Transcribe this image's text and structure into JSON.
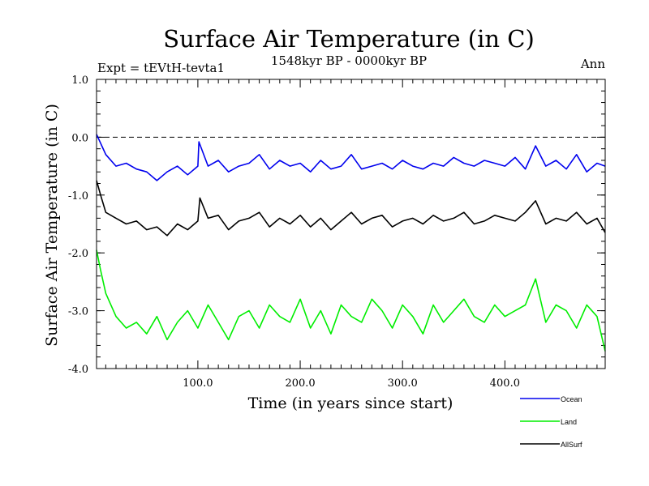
{
  "chart_data": {
    "type": "line",
    "title": "Surface Air Temperature (in C)",
    "subtitle": "1548kyr BP - 0000kyr BP",
    "expt_label": "Expt = tEVtH-tevta1",
    "period_label": "Ann",
    "xlabel": "Time (in years since start)",
    "ylabel": "Surface Air Temperature (in C)",
    "xlim": [
      1,
      498
    ],
    "ylim": [
      -4.0,
      1.0
    ],
    "x_ticks": [
      100,
      200,
      300,
      400
    ],
    "x_tick_labels": [
      "100.0",
      "200.0",
      "300.0",
      "400.0"
    ],
    "y_ticks": [
      1.0,
      0.0,
      -1.0,
      -2.0,
      -3.0,
      -4.0
    ],
    "y_tick_labels": [
      "1.0",
      "0.0",
      "-1.0",
      "-2.0",
      "-3.0",
      "-4.0"
    ],
    "reference_line": 0.0,
    "legend_position": "bottom-right",
    "series": [
      {
        "name": "Ocean",
        "color": "#0000ee",
        "x": [
          1,
          10,
          20,
          30,
          40,
          50,
          60,
          70,
          80,
          90,
          100,
          101,
          110,
          120,
          130,
          140,
          150,
          160,
          170,
          180,
          190,
          200,
          210,
          220,
          230,
          240,
          250,
          260,
          270,
          280,
          290,
          300,
          310,
          320,
          330,
          340,
          350,
          360,
          370,
          380,
          390,
          400,
          410,
          420,
          430,
          440,
          450,
          460,
          470,
          480,
          490,
          498
        ],
        "values": [
          0.05,
          -0.3,
          -0.5,
          -0.45,
          -0.55,
          -0.6,
          -0.75,
          -0.6,
          -0.5,
          -0.65,
          -0.5,
          -0.08,
          -0.5,
          -0.4,
          -0.6,
          -0.5,
          -0.45,
          -0.3,
          -0.55,
          -0.4,
          -0.5,
          -0.45,
          -0.6,
          -0.4,
          -0.55,
          -0.5,
          -0.3,
          -0.55,
          -0.5,
          -0.45,
          -0.55,
          -0.4,
          -0.5,
          -0.55,
          -0.45,
          -0.5,
          -0.35,
          -0.45,
          -0.5,
          -0.4,
          -0.45,
          -0.5,
          -0.35,
          -0.55,
          -0.15,
          -0.5,
          -0.4,
          -0.55,
          -0.3,
          -0.6,
          -0.45,
          -0.5
        ]
      },
      {
        "name": "Land",
        "color": "#00ee00",
        "x": [
          1,
          5,
          10,
          20,
          30,
          40,
          50,
          60,
          70,
          80,
          90,
          100,
          110,
          120,
          130,
          140,
          150,
          160,
          170,
          180,
          190,
          200,
          210,
          220,
          230,
          240,
          250,
          260,
          270,
          280,
          290,
          300,
          310,
          320,
          330,
          340,
          350,
          360,
          370,
          380,
          390,
          400,
          410,
          420,
          430,
          440,
          450,
          460,
          470,
          480,
          490,
          498
        ],
        "values": [
          -1.95,
          -2.3,
          -2.7,
          -3.1,
          -3.3,
          -3.2,
          -3.4,
          -3.1,
          -3.5,
          -3.2,
          -3.0,
          -3.3,
          -2.9,
          -3.2,
          -3.5,
          -3.1,
          -3.0,
          -3.3,
          -2.9,
          -3.1,
          -3.2,
          -2.8,
          -3.3,
          -3.0,
          -3.4,
          -2.9,
          -3.1,
          -3.2,
          -2.8,
          -3.0,
          -3.3,
          -2.9,
          -3.1,
          -3.4,
          -2.9,
          -3.2,
          -3.0,
          -2.8,
          -3.1,
          -3.2,
          -2.9,
          -3.1,
          -3.0,
          -2.9,
          -2.45,
          -3.2,
          -2.9,
          -3.0,
          -3.3,
          -2.9,
          -3.1,
          -3.7
        ]
      },
      {
        "name": "AllSurf",
        "color": "#000000",
        "x": [
          1,
          5,
          10,
          20,
          30,
          40,
          50,
          60,
          70,
          80,
          90,
          100,
          102,
          110,
          120,
          130,
          140,
          150,
          160,
          170,
          180,
          190,
          200,
          210,
          220,
          230,
          240,
          250,
          260,
          270,
          280,
          290,
          300,
          310,
          320,
          330,
          340,
          350,
          360,
          370,
          380,
          390,
          400,
          410,
          420,
          430,
          440,
          450,
          460,
          470,
          480,
          490,
          498
        ],
        "values": [
          -0.75,
          -1.0,
          -1.3,
          -1.4,
          -1.5,
          -1.45,
          -1.6,
          -1.55,
          -1.7,
          -1.5,
          -1.6,
          -1.45,
          -1.05,
          -1.4,
          -1.35,
          -1.6,
          -1.45,
          -1.4,
          -1.3,
          -1.55,
          -1.4,
          -1.5,
          -1.35,
          -1.55,
          -1.4,
          -1.6,
          -1.45,
          -1.3,
          -1.5,
          -1.4,
          -1.35,
          -1.55,
          -1.45,
          -1.4,
          -1.5,
          -1.35,
          -1.45,
          -1.4,
          -1.3,
          -1.5,
          -1.45,
          -1.35,
          -1.4,
          -1.45,
          -1.3,
          -1.1,
          -1.5,
          -1.4,
          -1.45,
          -1.3,
          -1.5,
          -1.4,
          -1.65
        ]
      }
    ]
  }
}
